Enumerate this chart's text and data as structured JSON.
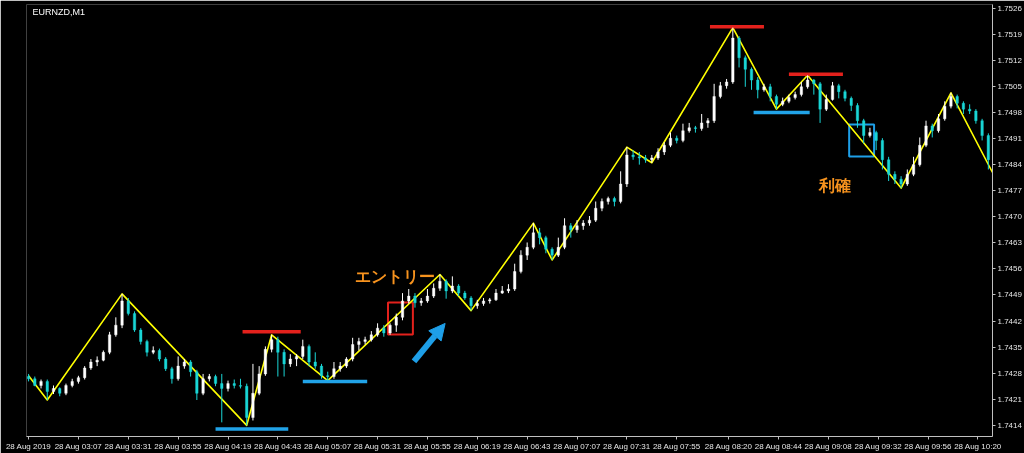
{
  "chart_data": {
    "type": "candlestick",
    "title": "EURNZD,M1",
    "x": [
      "2019-08-28T02:43",
      "2019-08-28T02:46",
      "2019-08-28T02:49",
      "2019-08-28T02:52",
      "2019-08-28T02:55",
      "2019-08-28T02:58",
      "2019-08-28T03:01",
      "2019-08-28T03:04",
      "2019-08-28T03:07",
      "2019-08-28T03:10",
      "2019-08-28T03:13",
      "2019-08-28T03:16",
      "2019-08-28T03:19",
      "2019-08-28T03:22",
      "2019-08-28T03:25",
      "2019-08-28T03:28",
      "2019-08-28T03:31",
      "2019-08-28T03:34",
      "2019-08-28T03:37",
      "2019-08-28T03:40",
      "2019-08-28T03:43",
      "2019-08-28T03:46",
      "2019-08-28T03:49",
      "2019-08-28T03:52",
      "2019-08-28T03:55",
      "2019-08-28T03:58",
      "2019-08-28T04:01",
      "2019-08-28T04:04",
      "2019-08-28T04:07",
      "2019-08-28T04:10",
      "2019-08-28T04:13",
      "2019-08-28T04:16",
      "2019-08-28T04:19",
      "2019-08-28T04:22",
      "2019-08-28T04:25",
      "2019-08-28T04:28",
      "2019-08-28T04:31",
      "2019-08-28T04:34",
      "2019-08-28T04:37",
      "2019-08-28T04:40",
      "2019-08-28T04:43",
      "2019-08-28T04:46",
      "2019-08-28T04:49",
      "2019-08-28T04:52",
      "2019-08-28T04:55",
      "2019-08-28T04:58",
      "2019-08-28T05:01",
      "2019-08-28T05:04",
      "2019-08-28T05:07",
      "2019-08-28T05:10",
      "2019-08-28T05:13",
      "2019-08-28T05:16",
      "2019-08-28T05:19",
      "2019-08-28T05:22",
      "2019-08-28T05:25",
      "2019-08-28T05:28",
      "2019-08-28T05:31",
      "2019-08-28T05:34",
      "2019-08-28T05:37",
      "2019-08-28T05:40",
      "2019-08-28T05:43",
      "2019-08-28T05:46",
      "2019-08-28T05:49",
      "2019-08-28T05:52",
      "2019-08-28T05:55",
      "2019-08-28T05:58",
      "2019-08-28T06:01",
      "2019-08-28T06:04",
      "2019-08-28T06:07",
      "2019-08-28T06:10",
      "2019-08-28T06:13",
      "2019-08-28T06:16",
      "2019-08-28T06:19",
      "2019-08-28T06:22",
      "2019-08-28T06:25",
      "2019-08-28T06:28",
      "2019-08-28T06:31",
      "2019-08-28T06:34",
      "2019-08-28T06:37",
      "2019-08-28T06:40",
      "2019-08-28T06:43",
      "2019-08-28T06:46",
      "2019-08-28T06:49",
      "2019-08-28T06:52",
      "2019-08-28T06:55",
      "2019-08-28T06:58",
      "2019-08-28T07:01",
      "2019-08-28T07:04",
      "2019-08-28T07:07",
      "2019-08-28T07:10",
      "2019-08-28T07:13",
      "2019-08-28T07:16",
      "2019-08-28T07:19",
      "2019-08-28T07:22",
      "2019-08-28T07:25",
      "2019-08-28T07:28",
      "2019-08-28T07:31",
      "2019-08-28T07:34",
      "2019-08-28T07:37",
      "2019-08-28T07:40",
      "2019-08-28T07:43",
      "2019-08-28T07:46",
      "2019-08-28T07:49",
      "2019-08-28T07:52",
      "2019-08-28T07:55",
      "2019-08-28T07:58",
      "2019-08-28T08:01",
      "2019-08-28T08:04",
      "2019-08-28T08:07",
      "2019-08-28T08:10",
      "2019-08-28T08:13",
      "2019-08-28T08:16",
      "2019-08-28T08:19",
      "2019-08-28T08:22",
      "2019-08-28T08:25",
      "2019-08-28T08:28",
      "2019-08-28T08:31",
      "2019-08-28T08:34",
      "2019-08-28T08:37",
      "2019-08-28T08:40",
      "2019-08-28T08:43",
      "2019-08-28T08:46",
      "2019-08-28T08:49",
      "2019-08-28T08:52",
      "2019-08-28T08:55",
      "2019-08-28T08:58",
      "2019-08-28T09:01",
      "2019-08-28T09:04",
      "2019-08-28T09:07",
      "2019-08-28T09:10",
      "2019-08-28T09:13",
      "2019-08-28T09:16",
      "2019-08-28T09:19",
      "2019-08-28T09:22",
      "2019-08-28T09:25",
      "2019-08-28T09:28",
      "2019-08-28T09:31",
      "2019-08-28T09:34",
      "2019-08-28T09:37",
      "2019-08-28T09:40",
      "2019-08-28T09:43",
      "2019-08-28T09:46",
      "2019-08-28T09:49",
      "2019-08-28T09:52",
      "2019-08-28T09:55",
      "2019-08-28T09:58",
      "2019-08-28T10:01",
      "2019-08-28T10:04",
      "2019-08-28T10:07",
      "2019-08-28T10:10",
      "2019-08-28T10:13",
      "2019-08-28T10:16",
      "2019-08-28T10:19",
      "2019-08-28T10:22",
      "2019-08-28T10:25"
    ],
    "ohlc": [
      [
        1.74271,
        1.74278,
        1.74258,
        1.74265
      ],
      [
        1.74265,
        1.74271,
        1.74245,
        1.74247
      ],
      [
        1.74247,
        1.74263,
        1.74239,
        1.74258
      ],
      [
        1.74258,
        1.74263,
        1.74208,
        1.74231
      ],
      [
        1.74231,
        1.74247,
        1.74224,
        1.74239
      ],
      [
        1.74239,
        1.74242,
        1.74218,
        1.74226
      ],
      [
        1.74226,
        1.74252,
        1.74221,
        1.74247
      ],
      [
        1.74247,
        1.74265,
        1.74242,
        1.74258
      ],
      [
        1.74258,
        1.74273,
        1.74252,
        1.74268
      ],
      [
        1.74268,
        1.74299,
        1.74263,
        1.74294
      ],
      [
        1.74294,
        1.74318,
        1.74289,
        1.7431
      ],
      [
        1.7431,
        1.74325,
        1.74299,
        1.74315
      ],
      [
        1.74315,
        1.74341,
        1.74312,
        1.74336
      ],
      [
        1.74336,
        1.74391,
        1.74331,
        1.74383
      ],
      [
        1.74383,
        1.7443,
        1.74378,
        1.74409
      ],
      [
        1.74409,
        1.74493,
        1.74401,
        1.74474
      ],
      [
        1.74474,
        1.74482,
        1.74435,
        1.7444
      ],
      [
        1.7444,
        1.74446,
        1.74391,
        1.74396
      ],
      [
        1.74396,
        1.74401,
        1.74357,
        1.74365
      ],
      [
        1.74365,
        1.7437,
        1.74325,
        1.74336
      ],
      [
        1.74336,
        1.74352,
        1.74331,
        1.74341
      ],
      [
        1.74341,
        1.74346,
        1.74312,
        1.74318
      ],
      [
        1.74318,
        1.74323,
        1.74286,
        1.74292
      ],
      [
        1.74292,
        1.74297,
        1.74252,
        1.74265
      ],
      [
        1.74265,
        1.74325,
        1.7426,
        1.74299
      ],
      [
        1.74299,
        1.74318,
        1.74292,
        1.7431
      ],
      [
        1.7431,
        1.74315,
        1.74271,
        1.74284
      ],
      [
        1.74284,
        1.74289,
        1.74208,
        1.74226
      ],
      [
        1.74226,
        1.74278,
        1.74221,
        1.74265
      ],
      [
        1.74265,
        1.74278,
        1.74258,
        1.74271
      ],
      [
        1.74271,
        1.74276,
        1.74245,
        1.74252
      ],
      [
        1.74252,
        1.74278,
        1.74148,
        1.74239
      ],
      [
        1.74239,
        1.7426,
        1.74231,
        1.74252
      ],
      [
        1.74252,
        1.74263,
        1.74239,
        1.74247
      ],
      [
        1.74247,
        1.74265,
        1.74239,
        1.74245
      ],
      [
        1.74245,
        1.74252,
        1.7414,
        1.74161
      ],
      [
        1.74161,
        1.74305,
        1.74153,
        1.74226
      ],
      [
        1.74226,
        1.74299,
        1.74221,
        1.74278
      ],
      [
        1.74278,
        1.74352,
        1.74273,
        1.74344
      ],
      [
        1.74344,
        1.74383,
        1.74336,
        1.7437
      ],
      [
        1.7437,
        1.74378,
        1.74271,
        1.74336
      ],
      [
        1.74336,
        1.74344,
        1.74271,
        1.74305
      ],
      [
        1.74305,
        1.74331,
        1.74297,
        1.74318
      ],
      [
        1.74318,
        1.74331,
        1.74299,
        1.74325
      ],
      [
        1.74325,
        1.7437,
        1.74318,
        1.74352
      ],
      [
        1.74352,
        1.74357,
        1.74299,
        1.7431
      ],
      [
        1.7431,
        1.74336,
        1.74292,
        1.74299
      ],
      [
        1.74299,
        1.74305,
        1.74265,
        1.74273
      ],
      [
        1.74273,
        1.74284,
        1.7426,
        1.74271
      ],
      [
        1.74271,
        1.7431,
        1.74265,
        1.74292
      ],
      [
        1.74292,
        1.7431,
        1.74284,
        1.74299
      ],
      [
        1.74299,
        1.74323,
        1.74294,
        1.74318
      ],
      [
        1.74318,
        1.74375,
        1.74312,
        1.74357
      ],
      [
        1.74357,
        1.74375,
        1.74341,
        1.74365
      ],
      [
        1.74365,
        1.74378,
        1.74357,
        1.7437
      ],
      [
        1.7437,
        1.74393,
        1.74365,
        1.74383
      ],
      [
        1.74383,
        1.74414,
        1.74378,
        1.74401
      ],
      [
        1.74401,
        1.74409,
        1.74378,
        1.74388
      ],
      [
        1.74388,
        1.74414,
        1.74383,
        1.74409
      ],
      [
        1.74409,
        1.7444,
        1.74391,
        1.7443
      ],
      [
        1.7443,
        1.74495,
        1.74422,
        1.74474
      ],
      [
        1.74474,
        1.74506,
        1.74467,
        1.74487
      ],
      [
        1.74487,
        1.74495,
        1.74456,
        1.74469
      ],
      [
        1.74469,
        1.74482,
        1.74461,
        1.74474
      ],
      [
        1.74474,
        1.74506,
        1.74469,
        1.74487
      ],
      [
        1.74487,
        1.74521,
        1.74482,
        1.74508
      ],
      [
        1.74508,
        1.74545,
        1.74501,
        1.74527
      ],
      [
        1.74527,
        1.74532,
        1.7448,
        1.74501
      ],
      [
        1.74501,
        1.7454,
        1.74495,
        1.74514
      ],
      [
        1.74514,
        1.74519,
        1.74487,
        1.74495
      ],
      [
        1.74495,
        1.74501,
        1.74477,
        1.74482
      ],
      [
        1.74482,
        1.74487,
        1.74448,
        1.74461
      ],
      [
        1.74461,
        1.74477,
        1.74453,
        1.74467
      ],
      [
        1.74467,
        1.74482,
        1.74461,
        1.74474
      ],
      [
        1.74474,
        1.74482,
        1.74467,
        1.74477
      ],
      [
        1.74477,
        1.74506,
        1.74474,
        1.74495
      ],
      [
        1.74495,
        1.74514,
        1.74493,
        1.74501
      ],
      [
        1.74501,
        1.74519,
        1.74495,
        1.74506
      ],
      [
        1.74506,
        1.74574,
        1.74501,
        1.74553
      ],
      [
        1.74553,
        1.7461,
        1.74548,
        1.74597
      ],
      [
        1.74597,
        1.74631,
        1.74584,
        1.74618
      ],
      [
        1.74618,
        1.74683,
        1.74613,
        1.74657
      ],
      [
        1.74657,
        1.7467,
        1.74626,
        1.74644
      ],
      [
        1.74644,
        1.74649,
        1.74602,
        1.74613
      ],
      [
        1.74613,
        1.74618,
        1.74584,
        1.74597
      ],
      [
        1.74597,
        1.74644,
        1.74592,
        1.74618
      ],
      [
        1.74618,
        1.74696,
        1.74613,
        1.74676
      ],
      [
        1.74676,
        1.74683,
        1.74644,
        1.74665
      ],
      [
        1.74665,
        1.74691,
        1.74657,
        1.74676
      ],
      [
        1.74676,
        1.74691,
        1.74665,
        1.74683
      ],
      [
        1.74683,
        1.74702,
        1.74676,
        1.74691
      ],
      [
        1.74691,
        1.74741,
        1.74686,
        1.74723
      ],
      [
        1.74723,
        1.74749,
        1.74715,
        1.74741
      ],
      [
        1.74741,
        1.74754,
        1.74733,
        1.74749
      ],
      [
        1.74749,
        1.74754,
        1.74728,
        1.74741
      ],
      [
        1.74741,
        1.74822,
        1.74736,
        1.74788
      ],
      [
        1.74788,
        1.74887,
        1.7478,
        1.74866
      ],
      [
        1.74866,
        1.74879,
        1.74853,
        1.74861
      ],
      [
        1.74861,
        1.74874,
        1.7484,
        1.74858
      ],
      [
        1.74858,
        1.74866,
        1.74845,
        1.74853
      ],
      [
        1.74853,
        1.74866,
        1.74845,
        1.74858
      ],
      [
        1.74858,
        1.74884,
        1.74853,
        1.74874
      ],
      [
        1.74874,
        1.749,
        1.74866,
        1.74892
      ],
      [
        1.74892,
        1.74926,
        1.74887,
        1.74911
      ],
      [
        1.74911,
        1.74918,
        1.74897,
        1.74905
      ],
      [
        1.74905,
        1.7495,
        1.749,
        1.74931
      ],
      [
        1.74931,
        1.74952,
        1.74926,
        1.74939
      ],
      [
        1.74939,
        1.74944,
        1.74926,
        1.74937
      ],
      [
        1.74937,
        1.74976,
        1.74931,
        1.74952
      ],
      [
        1.74952,
        1.74965,
        1.74939,
        1.74958
      ],
      [
        1.74958,
        1.75057,
        1.74952,
        1.75023
      ],
      [
        1.75023,
        1.75062,
        1.75018,
        1.75052
      ],
      [
        1.75052,
        1.7507,
        1.75044,
        1.75062
      ],
      [
        1.75062,
        1.75208,
        1.75057,
        1.7518
      ],
      [
        1.7518,
        1.75185,
        1.75101,
        1.75127
      ],
      [
        1.75127,
        1.75133,
        1.75049,
        1.75096
      ],
      [
        1.75096,
        1.75101,
        1.75041,
        1.75067
      ],
      [
        1.75067,
        1.75075,
        1.75018,
        1.75041
      ],
      [
        1.75041,
        1.75057,
        1.75036,
        1.75049
      ],
      [
        1.75049,
        1.75057,
        1.7501,
        1.75023
      ],
      [
        1.75023,
        1.75028,
        1.74989,
        1.75002
      ],
      [
        1.75002,
        1.7502,
        1.74997,
        1.7501
      ],
      [
        1.7501,
        1.75028,
        1.75005,
        1.7502
      ],
      [
        1.7502,
        1.75036,
        1.75015,
        1.75028
      ],
      [
        1.75028,
        1.75062,
        1.75023,
        1.75049
      ],
      [
        1.75049,
        1.7508,
        1.75044,
        1.75067
      ],
      [
        1.75067,
        1.7507,
        1.75028,
        1.75057
      ],
      [
        1.75057,
        1.75062,
        1.74952,
        1.74989
      ],
      [
        1.74989,
        1.75028,
        1.74984,
        1.75015
      ],
      [
        1.75015,
        1.75062,
        1.75012,
        1.75052
      ],
      [
        1.75052,
        1.75057,
        1.75018,
        1.75036
      ],
      [
        1.75036,
        1.75041,
        1.7501,
        1.75018
      ],
      [
        1.75018,
        1.75023,
        1.74984,
        1.74999
      ],
      [
        1.74999,
        1.75005,
        1.74939,
        1.74958
      ],
      [
        1.74958,
        1.74963,
        1.74897,
        1.74918
      ],
      [
        1.74918,
        1.74939,
        1.74913,
        1.74926
      ],
      [
        1.74926,
        1.74931,
        1.74879,
        1.74905
      ],
      [
        1.74905,
        1.74911,
        1.74827,
        1.74853
      ],
      [
        1.74853,
        1.74861,
        1.74796,
        1.74814
      ],
      [
        1.74814,
        1.74822,
        1.74788,
        1.74801
      ],
      [
        1.74801,
        1.74809,
        1.74777,
        1.74788
      ],
      [
        1.74788,
        1.74827,
        1.74783,
        1.74814
      ],
      [
        1.74814,
        1.74861,
        1.74809,
        1.7484
      ],
      [
        1.7484,
        1.74913,
        1.74835,
        1.74892
      ],
      [
        1.74892,
        1.74958,
        1.74887,
        1.74944
      ],
      [
        1.74944,
        1.7495,
        1.74913,
        1.74931
      ],
      [
        1.74931,
        1.74976,
        1.74926,
        1.74963
      ],
      [
        1.74963,
        1.7501,
        1.74958,
        1.74997
      ],
      [
        1.74997,
        1.75033,
        1.74991,
        1.75023
      ],
      [
        1.75023,
        1.75028,
        1.74991,
        1.75005
      ],
      [
        1.75005,
        1.7501,
        1.74976,
        1.74989
      ],
      [
        1.74989,
        1.75002,
        1.74976,
        1.74984
      ],
      [
        1.74984,
        1.74989,
        1.7495,
        1.74958
      ],
      [
        1.74958,
        1.74963,
        1.74905,
        1.74918
      ],
      [
        1.74918,
        1.74924,
        1.74827,
        1.74853
      ]
    ],
    "colors": [
      "#1ad6d6",
      "#1ad6d6",
      "#ffffff",
      "#1ad6d6",
      "#ffffff",
      "#1ad6d6",
      "#ffffff",
      "#ffffff",
      "#ffffff",
      "#ffffff",
      "#ffffff",
      "#ffffff",
      "#ffffff",
      "#ffffff",
      "#ffffff",
      "#ffffff",
      "#1ad6d6",
      "#1ad6d6",
      "#1ad6d6",
      "#1ad6d6",
      "#ffffff",
      "#1ad6d6",
      "#1ad6d6",
      "#1ad6d6",
      "#ffffff",
      "#ffffff",
      "#1ad6d6",
      "#1ad6d6",
      "#ffffff",
      "#ffffff",
      "#1ad6d6",
      "#1ad6d6",
      "#ffffff",
      "#1ad6d6",
      "#1ad6d6",
      "#1ad6d6",
      "#ffffff",
      "#ffffff",
      "#ffffff",
      "#ffffff",
      "#1ad6d6",
      "#1ad6d6",
      "#ffffff",
      "#ffffff",
      "#ffffff",
      "#1ad6d6",
      "#1ad6d6",
      "#1ad6d6",
      "#1ad6d6",
      "#ffffff",
      "#ffffff",
      "#ffffff",
      "#ffffff",
      "#ffffff",
      "#ffffff",
      "#ffffff",
      "#ffffff",
      "#1ad6d6",
      "#ffffff",
      "#ffffff",
      "#ffffff",
      "#ffffff",
      "#1ad6d6",
      "#ffffff",
      "#ffffff",
      "#ffffff",
      "#ffffff",
      "#1ad6d6",
      "#ffffff",
      "#1ad6d6",
      "#1ad6d6",
      "#1ad6d6",
      "#ffffff",
      "#ffffff",
      "#ffffff",
      "#ffffff",
      "#ffffff",
      "#ffffff",
      "#ffffff",
      "#ffffff",
      "#ffffff",
      "#ffffff",
      "#1ad6d6",
      "#1ad6d6",
      "#1ad6d6",
      "#ffffff",
      "#ffffff",
      "#1ad6d6",
      "#ffffff",
      "#ffffff",
      "#ffffff",
      "#ffffff",
      "#ffffff",
      "#ffffff",
      "#1ad6d6",
      "#ffffff",
      "#ffffff",
      "#1ad6d6",
      "#1ad6d6",
      "#1ad6d6",
      "#ffffff",
      "#ffffff",
      "#ffffff",
      "#ffffff",
      "#1ad6d6",
      "#ffffff",
      "#ffffff",
      "#1ad6d6",
      "#ffffff",
      "#ffffff",
      "#ffffff",
      "#ffffff",
      "#ffffff",
      "#ffffff",
      "#1ad6d6",
      "#1ad6d6",
      "#1ad6d6",
      "#1ad6d6",
      "#ffffff",
      "#1ad6d6",
      "#1ad6d6",
      "#ffffff",
      "#ffffff",
      "#ffffff",
      "#ffffff",
      "#ffffff",
      "#1ad6d6",
      "#1ad6d6",
      "#ffffff",
      "#ffffff",
      "#1ad6d6",
      "#1ad6d6",
      "#1ad6d6",
      "#1ad6d6",
      "#1ad6d6",
      "#ffffff",
      "#1ad6d6",
      "#1ad6d6",
      "#1ad6d6",
      "#1ad6d6",
      "#1ad6d6",
      "#ffffff",
      "#ffffff",
      "#ffffff",
      "#ffffff",
      "#1ad6d6",
      "#ffffff",
      "#ffffff",
      "#ffffff",
      "#1ad6d6",
      "#1ad6d6",
      "#1ad6d6",
      "#1ad6d6",
      "#1ad6d6",
      "#1ad6d6"
    ],
    "series": [
      {
        "type": "line",
        "color": "#ffff00",
        "x": [
          "2019-08-28T02:43",
          "2019-08-28T02:52",
          "2019-08-28T03:28",
          "2019-08-28T04:28",
          "2019-08-28T04:40",
          "2019-08-28T05:07",
          "2019-08-28T06:01",
          "2019-08-28T06:16",
          "2019-08-28T06:46",
          "2019-08-28T06:55",
          "2019-08-28T07:31",
          "2019-08-28T07:43",
          "2019-08-28T08:22",
          "2019-08-28T08:43",
          "2019-08-28T08:58",
          "2019-08-28T09:43",
          "2019-08-28T10:07",
          "2019-08-28T10:27"
        ],
        "values": [
          1.74273,
          1.74208,
          1.74493,
          1.7414,
          1.74383,
          1.7426,
          1.74545,
          1.74448,
          1.74683,
          1.74584,
          1.74887,
          1.74845,
          1.75208,
          1.74989,
          1.7508,
          1.74777,
          1.75033,
          1.74819
        ]
      },
      {
        "type": "line",
        "color": "#21a3e8",
        "x": [
          "2019-08-28T04:13",
          "2019-08-28T04:48"
        ],
        "values": [
          1.7413,
          1.7413
        ]
      },
      {
        "type": "line",
        "color": "#e3211c",
        "x": [
          "2019-08-28T04:26",
          "2019-08-28T04:54"
        ],
        "values": [
          1.74391,
          1.74391
        ]
      },
      {
        "type": "line",
        "color": "#21a3e8",
        "x": [
          "2019-08-28T04:55",
          "2019-08-28T05:26"
        ],
        "values": [
          1.74258,
          1.74258
        ]
      },
      {
        "type": "line",
        "color": "#e3211c",
        "x": [
          "2019-08-28T08:11",
          "2019-08-28T08:37"
        ],
        "values": [
          1.7521,
          1.7521
        ]
      },
      {
        "type": "line",
        "color": "#21a3e8",
        "x": [
          "2019-08-28T08:32",
          "2019-08-28T08:59"
        ],
        "values": [
          1.7498,
          1.7498
        ]
      },
      {
        "type": "line",
        "color": "#e3211c",
        "x": [
          "2019-08-28T08:49",
          "2019-08-28T09:15"
        ],
        "values": [
          1.75083,
          1.75083
        ]
      }
    ],
    "annotations": [
      {
        "text": "エントリー",
        "x": "2019-08-28T05:42",
        "y": 1.74427
      },
      {
        "text": "利確",
        "x": "2019-08-28T09:24",
        "y": 1.74905
      }
    ],
    "xlim": [
      "2019-08-28T02:42",
      "2019-08-28T10:27"
    ],
    "xticks": [
      {
        "value": "2019-08-28T02:43",
        "label": "28 Aug 2019"
      },
      {
        "value": "2019-08-28T03:07",
        "label": "28 Aug 03:07"
      },
      {
        "value": "2019-08-28T03:31",
        "label": "28 Aug 03:31"
      },
      {
        "value": "2019-08-28T03:55",
        "label": "28 Aug 03:55"
      },
      {
        "value": "2019-08-28T04:19",
        "label": "28 Aug 04:19"
      },
      {
        "value": "2019-08-28T04:43",
        "label": "28 Aug 04:43"
      },
      {
        "value": "2019-08-28T05:07",
        "label": "28 Aug 05:07"
      },
      {
        "value": "2019-08-28T05:31",
        "label": "28 Aug 05:31"
      },
      {
        "value": "2019-08-28T05:55",
        "label": "28 Aug 05:55"
      },
      {
        "value": "2019-08-28T06:19",
        "label": "28 Aug 06:19"
      },
      {
        "value": "2019-08-28T06:43",
        "label": "28 Aug 06:43"
      },
      {
        "value": "2019-08-28T07:07",
        "label": "28 Aug 07:07"
      },
      {
        "value": "2019-08-28T07:31",
        "label": "28 Aug 07:31"
      },
      {
        "value": "2019-08-28T07:55",
        "label": "28 Aug 07:55"
      },
      {
        "value": "2019-08-28T08:20",
        "label": "28 Aug 08:20"
      },
      {
        "value": "2019-08-28T08:44",
        "label": "28 Aug 08:44"
      },
      {
        "value": "2019-08-28T09:08",
        "label": "28 Aug 09:08"
      },
      {
        "value": "2019-08-28T09:32",
        "label": "28 Aug 09:32"
      },
      {
        "value": "2019-08-28T09:56",
        "label": "28 Aug 09:56"
      },
      {
        "value": "2019-08-28T10:20",
        "label": "28 Aug 10:20"
      }
    ],
    "ylim": [
      1.7411,
      1.7527
    ],
    "yticks": [
      1.7414,
      1.7421,
      1.7428,
      1.7435,
      1.7442,
      1.7449,
      1.7456,
      1.7463,
      {
        "value": 1.747,
        "label": "1.7470"
      },
      1.7477,
      1.7484,
      1.7491,
      1.7498,
      1.7505,
      1.7512,
      1.7519,
      1.7526
    ],
    "grid": false
  }
}
